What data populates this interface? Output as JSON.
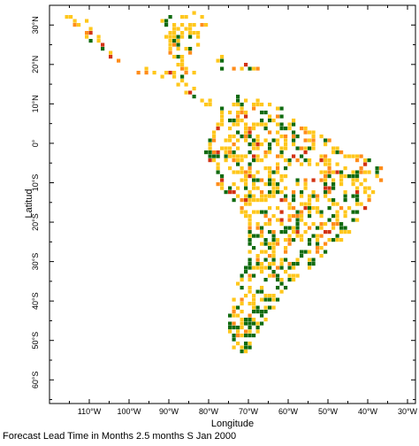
{
  "map": {
    "axes": {
      "xlabel": "Longitude",
      "ylabel": "Latitud",
      "x_range": [
        -120,
        -28
      ],
      "y_range": [
        -66,
        35
      ],
      "x_ticks": [
        {
          "value": -110,
          "label": "110°W"
        },
        {
          "value": -100,
          "label": "100°W"
        },
        {
          "value": -90,
          "label": "90°W"
        },
        {
          "value": -80,
          "label": "80°W"
        },
        {
          "value": -70,
          "label": "70°W"
        },
        {
          "value": -60,
          "label": "60°W"
        },
        {
          "value": -50,
          "label": "50°W"
        },
        {
          "value": -40,
          "label": "40°W"
        },
        {
          "value": -30,
          "label": "30°W"
        }
      ],
      "y_ticks": [
        {
          "value": 30,
          "label": "30°N"
        },
        {
          "value": 20,
          "label": "20°N"
        },
        {
          "value": 10,
          "label": "10°N"
        },
        {
          "value": 0,
          "label": "0°"
        },
        {
          "value": -10,
          "label": "10°S"
        },
        {
          "value": -20,
          "label": "20°S"
        },
        {
          "value": -30,
          "label": "30°S"
        },
        {
          "value": -40,
          "label": "40°S"
        },
        {
          "value": -50,
          "label": "50°S"
        },
        {
          "value": -60,
          "label": "60°S"
        }
      ]
    },
    "colors": {
      "dark_green": "#106b10",
      "yellow": "#ffc71c",
      "orange": "#ff8c1a",
      "red": "#d23214"
    },
    "category_order": [
      "dark_green",
      "yellow",
      "orange",
      "red"
    ]
  },
  "caption": "Forecast Lead Time in Months 2.5 months S Jan 2000"
}
